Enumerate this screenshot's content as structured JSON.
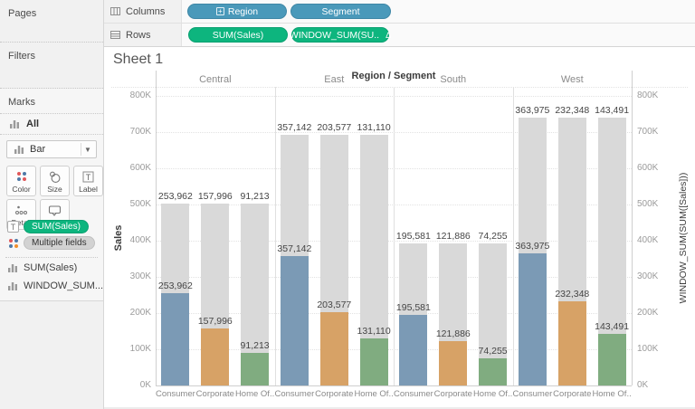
{
  "shelves": {
    "columns_label": "Columns",
    "rows_label": "Rows",
    "columns_pills": [
      {
        "label": "Region"
      },
      {
        "label": "Segment"
      }
    ],
    "rows_pills": [
      {
        "label": "SUM(Sales)"
      },
      {
        "label": "WINDOW_SUM(SU..",
        "delta": "Δ"
      }
    ]
  },
  "sidebar": {
    "pages_label": "Pages",
    "filters_label": "Filters",
    "marks_label": "Marks",
    "all_label": "All",
    "mark_type": "Bar",
    "buttons": [
      "Color",
      "Size",
      "Label",
      "Detail",
      "Tooltip"
    ],
    "card_pills": [
      {
        "icon": "label-icon",
        "text": "SUM(Sales)"
      },
      {
        "icon": "color-icon",
        "text": "Multiple fields"
      }
    ],
    "fields": [
      {
        "label": "SUM(Sales)"
      },
      {
        "label": "WINDOW_SUM...",
        "delta": "Δ"
      }
    ]
  },
  "sheet": {
    "title": "Sheet 1",
    "column_header": "Region / Segment",
    "left_axis_title": "Sales",
    "right_axis_title": "WINDOW_SUM(SUM([Sales]))"
  },
  "chart_data": {
    "type": "bar",
    "title": "Sheet 1",
    "xlabel": "Region / Segment",
    "ylabel_left": "Sales",
    "ylabel_right": "WINDOW_SUM(SUM([Sales]))",
    "ylim": [
      0,
      800000
    ],
    "yticks": [
      "0K",
      "100K",
      "200K",
      "300K",
      "400K",
      "500K",
      "600K",
      "700K",
      "800K"
    ],
    "grid": "horizontal-dotted",
    "regions": [
      "Central",
      "East",
      "South",
      "West"
    ],
    "segments": [
      "Consumer",
      "Corporate",
      "Home Office"
    ],
    "segment_display": [
      "Consumer",
      "Corporate",
      "Home Of.."
    ],
    "series": [
      {
        "region": "Central",
        "values": [
          253962,
          157996,
          91213
        ],
        "values_fmt": [
          "253,962",
          "157,996",
          "91,213"
        ],
        "window_sum": 503171
      },
      {
        "region": "East",
        "values": [
          357142,
          203577,
          131110
        ],
        "values_fmt": [
          "357,142",
          "203,577",
          "131,110"
        ],
        "window_sum": 691829
      },
      {
        "region": "South",
        "values": [
          195581,
          121886,
          74255
        ],
        "values_fmt": [
          "195,581",
          "121,886",
          "74,255"
        ],
        "window_sum": 391722
      },
      {
        "region": "West",
        "values": [
          363975,
          232348,
          143491
        ],
        "values_fmt": [
          "363,975",
          "232,348",
          "143,491"
        ],
        "window_sum": 739814
      }
    ],
    "colors": {
      "Consumer": "#7b9ab5",
      "Corporate": "#d7a266",
      "Home Office": "#80ac80",
      "window_sum_bar": "#d9d9d9"
    }
  }
}
